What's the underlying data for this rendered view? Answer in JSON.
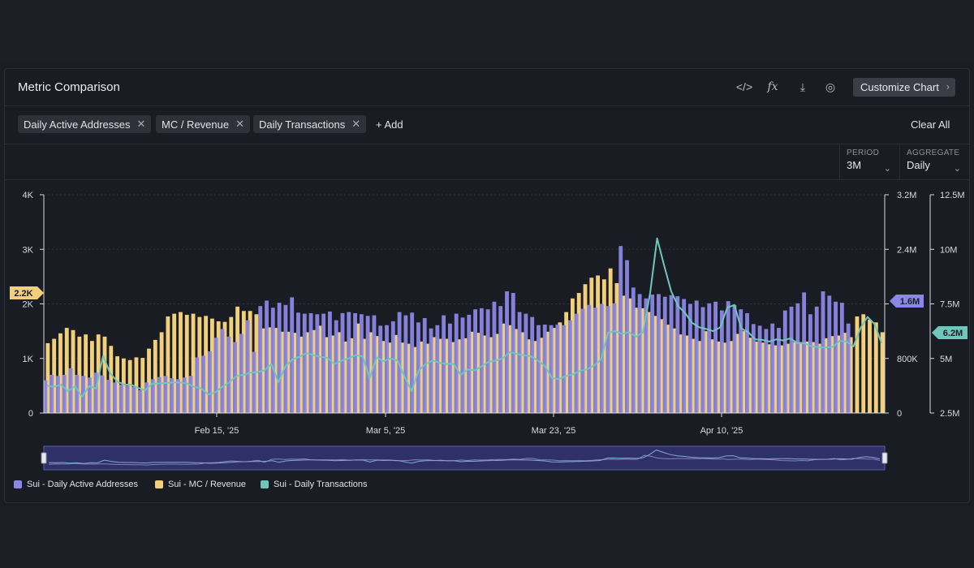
{
  "header": {
    "title": "Metric Comparison",
    "customize_label": "Customize Chart",
    "tools": [
      {
        "icon": "code-icon",
        "glyph": "</>"
      },
      {
        "icon": "formula-icon",
        "glyph": "fx"
      },
      {
        "icon": "download-icon",
        "glyph": "⤓"
      },
      {
        "icon": "camera-icon",
        "glyph": "◎"
      }
    ]
  },
  "chips": {
    "items": [
      {
        "label": "Daily Active Addresses"
      },
      {
        "label": "MC / Revenue"
      },
      {
        "label": "Daily Transactions"
      }
    ],
    "add_label": "+ Add",
    "clear_label": "Clear All"
  },
  "controls": {
    "period": {
      "label": "PERIOD",
      "value": "3M"
    },
    "aggregate": {
      "label": "AGGREGATE",
      "value": "Daily"
    }
  },
  "legend": {
    "items": [
      {
        "label": "Sui - Daily Active Addresses",
        "color": "#8b87e6"
      },
      {
        "label": "Sui - MC / Revenue",
        "color": "#f2cf7a"
      },
      {
        "label": "Sui - Daily Transactions",
        "color": "#6fc6bd"
      }
    ]
  },
  "chart_data": {
    "type": "bar",
    "x_ticks": [
      "Feb 15, '25",
      "Mar 5, '25",
      "Mar 23, '25",
      "Apr 10, '25"
    ],
    "left_axis": {
      "ticks": [
        "0",
        "1K",
        "2K",
        "3K",
        "4K"
      ],
      "range": [
        0,
        4000
      ]
    },
    "right_axis_1": {
      "ticks": [
        "0",
        "800K",
        "1.6M",
        "2.4M",
        "3.2M"
      ],
      "range": [
        0,
        3200000
      ]
    },
    "right_axis_2": {
      "ticks": [
        "2.5M",
        "5M",
        "7.5M",
        "10M",
        "12.5M"
      ],
      "range": [
        2500000,
        12500000
      ]
    },
    "current_labels": {
      "left": "2.2K",
      "right_1": "1.6M",
      "right_2": "6.2M"
    },
    "colors": {
      "active_addresses": "#8b87e6",
      "mc_revenue": "#f2cf7a",
      "transactions": "#6fc6bd"
    },
    "series": [
      {
        "name": "Sui - Daily Active Addresses",
        "values": [
          600,
          700,
          680,
          700,
          820,
          700,
          680,
          650,
          740,
          690,
          610,
          560,
          520,
          500,
          480,
          420,
          560,
          620,
          660,
          680,
          640,
          620,
          650,
          680,
          1020,
          1050,
          1130,
          1380,
          1540,
          1400,
          1300,
          1450,
          1700,
          1120,
          1960,
          2060,
          1930,
          2020,
          1980,
          2120,
          1840,
          1820,
          1830,
          1810,
          1820,
          1860,
          1700,
          1830,
          1850,
          1830,
          1810,
          1780,
          1790,
          1600,
          1610,
          1680,
          1850,
          1790,
          1840,
          1660,
          1740,
          1550,
          1610,
          1790,
          1640,
          1820,
          1750,
          1800,
          1900,
          1920,
          1900,
          2040,
          1960,
          2230,
          2200,
          1850,
          1820,
          1760,
          1610,
          1620,
          1610,
          1620,
          1610,
          1700,
          1820,
          1910,
          1980,
          1930,
          2000,
          1960,
          2010,
          3060,
          2800,
          2300,
          2180,
          2100,
          2170,
          2180,
          2130,
          2160,
          2140,
          2090,
          2000,
          2060,
          1940,
          2010,
          2040,
          1880,
          2050,
          1980,
          1900,
          1830,
          1630,
          1600,
          1540,
          1640,
          1560,
          1880,
          1950,
          2010,
          2210,
          1810,
          1950,
          2230,
          2150,
          2040,
          2020,
          1640
        ]
      },
      {
        "name": "Sui - MC / Revenue",
        "values": [
          1280,
          1360,
          1460,
          1560,
          1520,
          1400,
          1440,
          1320,
          1440,
          1400,
          1230,
          1040,
          1000,
          970,
          1020,
          1010,
          1180,
          1340,
          1480,
          1770,
          1820,
          1850,
          1800,
          1820,
          1760,
          1780,
          1730,
          1680,
          1670,
          1760,
          1950,
          1870,
          1870,
          1810,
          1550,
          1570,
          1560,
          1490,
          1490,
          1470,
          1400,
          1480,
          1520,
          1600,
          1390,
          1420,
          1480,
          1310,
          1370,
          1640,
          1360,
          1480,
          1410,
          1320,
          1290,
          1430,
          1290,
          1270,
          1210,
          1310,
          1270,
          1390,
          1360,
          1360,
          1300,
          1350,
          1370,
          1490,
          1470,
          1420,
          1390,
          1450,
          1640,
          1610,
          1540,
          1480,
          1350,
          1320,
          1380,
          1490,
          1560,
          1660,
          1850,
          2100,
          2200,
          2360,
          2480,
          2520,
          2450,
          2650,
          2380,
          2150,
          2100,
          1930,
          1920,
          1850,
          1780,
          1720,
          1620,
          1550,
          1440,
          1420,
          1360,
          1320,
          1500,
          1350,
          1310,
          1290,
          1320,
          1450,
          1500,
          1380,
          1310,
          1290,
          1260,
          1240,
          1240,
          1270,
          1300,
          1300,
          1310,
          1300,
          1270,
          1370,
          1410,
          1420,
          1470,
          1390,
          1770,
          1810,
          1710,
          1660,
          1480
        ]
      },
      {
        "name": "Sui - Daily Transactions",
        "values": [
          500,
          480,
          520,
          400,
          490,
          300,
          490,
          450,
          1050,
          730,
          580,
          520,
          520,
          460,
          420,
          540,
          540,
          550,
          560,
          560,
          540,
          480,
          450,
          340,
          380,
          480,
          560,
          680,
          700,
          740,
          750,
          780,
          900,
          560,
          860,
          980,
          1030,
          1100,
          1060,
          1030,
          1010,
          900,
          960,
          1000,
          1060,
          1040,
          640,
          1020,
          950,
          1000,
          960,
          660,
          400,
          780,
          900,
          960,
          920,
          900,
          900,
          700,
          800,
          780,
          860,
          940,
          960,
          1000,
          1120,
          1080,
          1060,
          1040,
          960,
          860,
          640,
          620,
          680,
          710,
          770,
          800,
          870,
          980,
          1470,
          1500,
          1450,
          1480,
          1400,
          1480,
          2200,
          3200,
          2700,
          2230,
          1960,
          1830,
          1650,
          1570,
          1540,
          1500,
          1570,
          1930,
          1980,
          1550,
          1480,
          1350,
          1340,
          1310,
          1350,
          1330,
          1370,
          1280,
          1280,
          1220,
          1210,
          1200,
          1210,
          1320,
          1310,
          1220,
          1560,
          1760,
          1630,
          1280
        ]
      }
    ]
  }
}
